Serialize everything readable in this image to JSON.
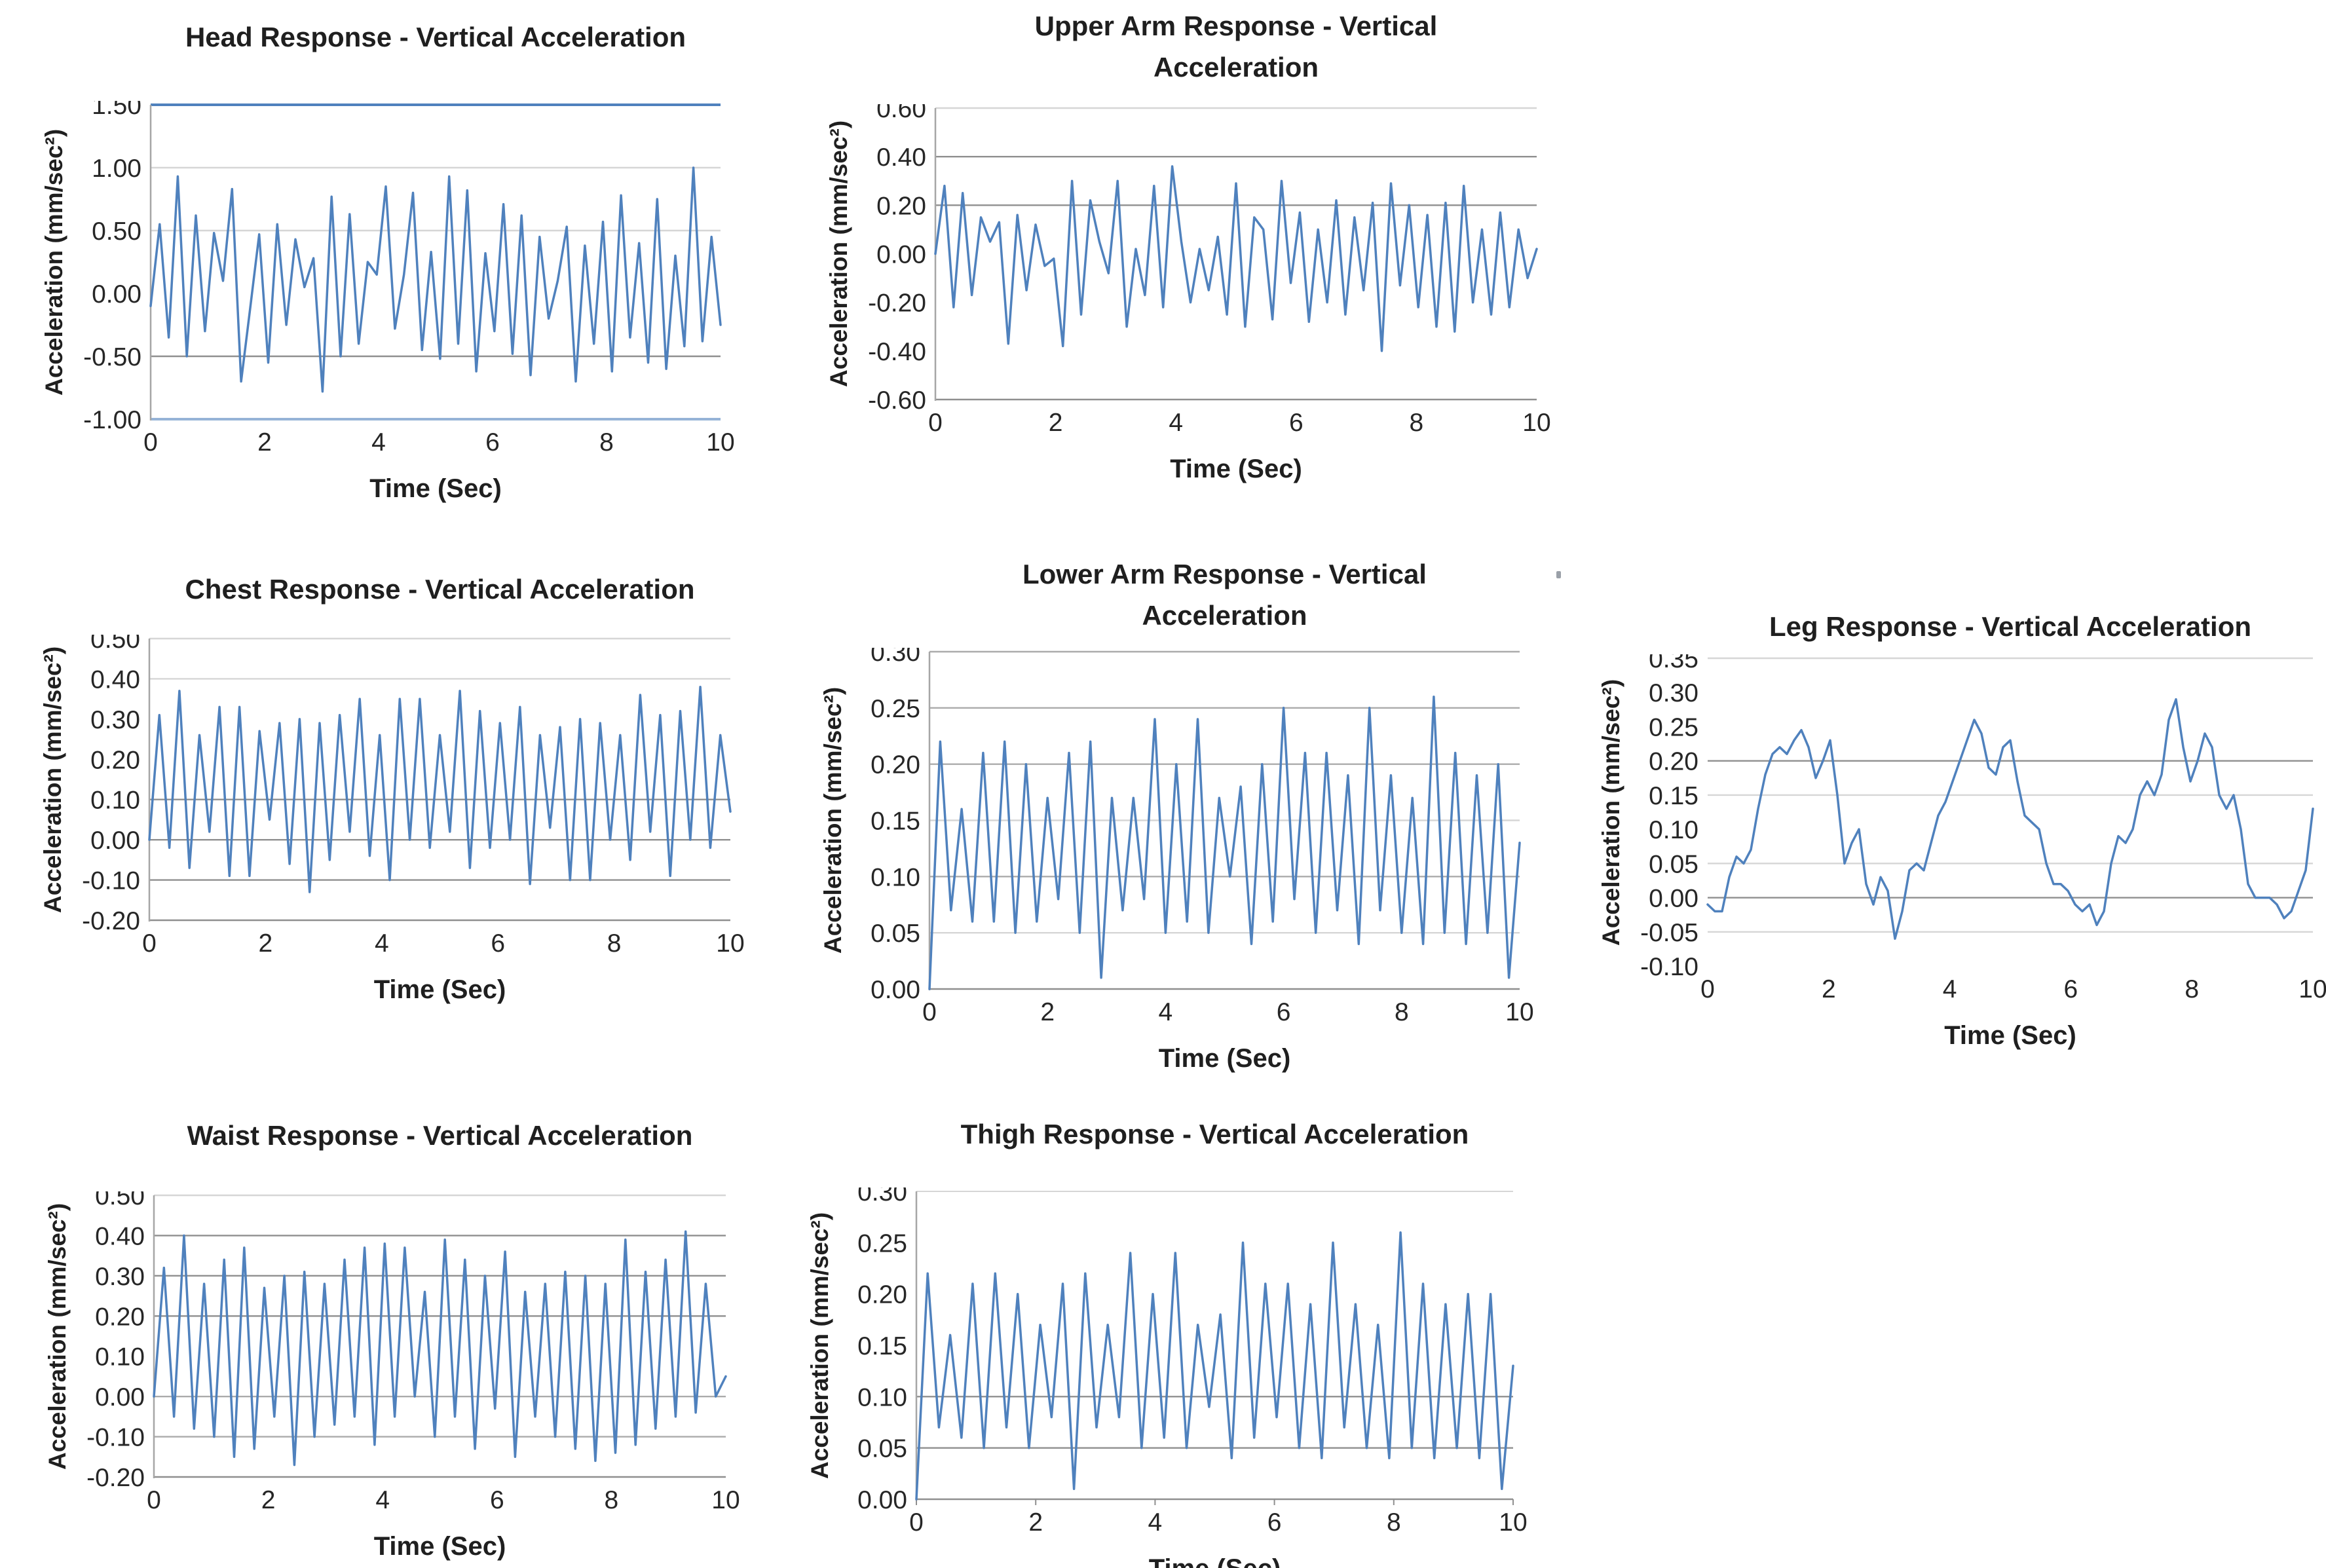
{
  "page": {
    "background": "#ffffff"
  },
  "colors": {
    "series": "#4f81bd",
    "grid_light": "#d6d6d6",
    "grid_mid": "#ababab",
    "grid_dark": "#8f8f8f",
    "axis": "#a6a6a6",
    "border_blue": "#4f81bd",
    "border_lightblue": "#95b3d7"
  },
  "chart_data": [
    {
      "id": "head",
      "type": "line",
      "title": "Head Response - Vertical Acceleration",
      "xlabel": "Time (Sec)",
      "ylabel": "Acceleration (mm/sec²)",
      "xlim": [
        0,
        10
      ],
      "ylim": [
        -1.0,
        1.5
      ],
      "xticks": [
        0,
        2,
        4,
        6,
        8,
        10
      ],
      "yticks": [
        {
          "v": 1.5,
          "label": "1.50"
        },
        {
          "v": 1.0,
          "label": "1.00"
        },
        {
          "v": 0.5,
          "label": "0.50"
        },
        {
          "v": 0.0,
          "label": "0.00"
        },
        {
          "v": -0.5,
          "label": "-0.50"
        },
        {
          "v": -1.0,
          "label": "-1.00"
        }
      ],
      "gridlines": [
        {
          "v": 1.0,
          "shade": "grid_light"
        },
        {
          "v": 0.5,
          "shade": "grid_light"
        },
        {
          "v": -0.5,
          "shade": "grid_dark"
        }
      ],
      "top_border": {
        "v": 1.5,
        "color": "border_blue",
        "w": 4
      },
      "bottom_border": {
        "v": -1.0,
        "color": "border_lightblue",
        "w": 4
      },
      "left_axis": true,
      "x_tick_marks": false,
      "legend": "none",
      "series": [
        {
          "name": "head-vertical-acceleration",
          "y": [
            -0.1,
            0.55,
            -0.35,
            0.93,
            -0.5,
            0.62,
            -0.3,
            0.48,
            0.1,
            0.83,
            -0.7,
            -0.12,
            0.47,
            -0.55,
            0.55,
            -0.25,
            0.43,
            0.05,
            0.28,
            -0.78,
            0.77,
            -0.5,
            0.63,
            -0.4,
            0.25,
            0.15,
            0.85,
            -0.28,
            0.15,
            0.8,
            -0.45,
            0.33,
            -0.52,
            0.93,
            -0.4,
            0.82,
            -0.62,
            0.32,
            -0.3,
            0.71,
            -0.48,
            0.62,
            -0.65,
            0.45,
            -0.2,
            0.1,
            0.53,
            -0.7,
            0.38,
            -0.4,
            0.57,
            -0.62,
            0.78,
            -0.35,
            0.4,
            -0.55,
            0.75,
            -0.6,
            0.3,
            -0.42,
            1.0,
            -0.38,
            0.45,
            -0.25
          ]
        }
      ]
    },
    {
      "id": "upper-arm",
      "type": "line",
      "title": "Upper Arm Response - Vertical\nAcceleration",
      "xlabel": "Time (Sec)",
      "ylabel": "Acceleration (mm/sec²)",
      "xlim": [
        0,
        10
      ],
      "ylim": [
        -0.6,
        0.6
      ],
      "xticks": [
        0,
        2,
        4,
        6,
        8,
        10
      ],
      "yticks": [
        {
          "v": 0.6,
          "label": "0.60"
        },
        {
          "v": 0.4,
          "label": "0.40"
        },
        {
          "v": 0.2,
          "label": "0.20"
        },
        {
          "v": 0.0,
          "label": "0.00"
        },
        {
          "v": -0.2,
          "label": "-0.20"
        },
        {
          "v": -0.4,
          "label": "-0.40"
        },
        {
          "v": -0.6,
          "label": "-0.60"
        }
      ],
      "gridlines": [
        {
          "v": 0.4,
          "shade": "grid_dark"
        },
        {
          "v": 0.2,
          "shade": "grid_dark"
        }
      ],
      "top_border": {
        "v": 0.6,
        "color": "grid_light",
        "w": 2.5
      },
      "bottom_border": {
        "v": -0.6,
        "color": "grid_dark",
        "w": 2.5
      },
      "left_axis": true,
      "x_tick_marks": false,
      "legend": "none",
      "series": [
        {
          "name": "upper-arm-vertical-acceleration",
          "y": [
            0.0,
            0.28,
            -0.22,
            0.25,
            -0.17,
            0.15,
            0.05,
            0.13,
            -0.37,
            0.16,
            -0.15,
            0.12,
            -0.05,
            -0.02,
            -0.38,
            0.3,
            -0.25,
            0.22,
            0.05,
            -0.08,
            0.3,
            -0.3,
            0.02,
            -0.17,
            0.28,
            -0.22,
            0.36,
            0.05,
            -0.2,
            0.02,
            -0.15,
            0.07,
            -0.25,
            0.29,
            -0.3,
            0.15,
            0.1,
            -0.27,
            0.3,
            -0.12,
            0.17,
            -0.28,
            0.1,
            -0.2,
            0.22,
            -0.25,
            0.15,
            -0.15,
            0.21,
            -0.4,
            0.29,
            -0.13,
            0.2,
            -0.22,
            0.16,
            -0.3,
            0.21,
            -0.32,
            0.28,
            -0.2,
            0.1,
            -0.25,
            0.17,
            -0.22,
            0.1,
            -0.1,
            0.02
          ]
        }
      ]
    },
    {
      "id": "chest",
      "type": "line",
      "title": "Chest Response - Vertical Acceleration",
      "xlabel": "Time (Sec)",
      "ylabel": "Acceleration (mm/sec²)",
      "xlim": [
        0,
        10
      ],
      "ylim": [
        -0.2,
        0.5
      ],
      "xticks": [
        0,
        2,
        4,
        6,
        8,
        10
      ],
      "yticks": [
        {
          "v": 0.5,
          "label": "0.50"
        },
        {
          "v": 0.4,
          "label": "0.40"
        },
        {
          "v": 0.3,
          "label": "0.30"
        },
        {
          "v": 0.2,
          "label": "0.20"
        },
        {
          "v": 0.1,
          "label": "0.10"
        },
        {
          "v": 0.0,
          "label": "0.00"
        },
        {
          "v": -0.1,
          "label": "-0.10"
        },
        {
          "v": -0.2,
          "label": "-0.20"
        }
      ],
      "gridlines": [
        {
          "v": 0.4,
          "shade": "grid_light"
        },
        {
          "v": 0.1,
          "shade": "grid_dark"
        },
        {
          "v": 0.0,
          "shade": "grid_dark"
        },
        {
          "v": -0.1,
          "shade": "grid_dark"
        }
      ],
      "top_border": {
        "v": 0.5,
        "color": "grid_light",
        "w": 2.5
      },
      "bottom_border": {
        "v": -0.2,
        "color": "grid_dark",
        "w": 2.5
      },
      "left_axis": true,
      "x_tick_marks": false,
      "legend": "none",
      "series": [
        {
          "name": "chest-vertical-acceleration",
          "y": [
            0.0,
            0.31,
            -0.02,
            0.37,
            -0.07,
            0.26,
            0.02,
            0.33,
            -0.09,
            0.33,
            -0.09,
            0.27,
            0.05,
            0.29,
            -0.06,
            0.3,
            -0.13,
            0.29,
            -0.05,
            0.31,
            0.02,
            0.35,
            -0.04,
            0.26,
            -0.1,
            0.35,
            0.0,
            0.35,
            -0.02,
            0.26,
            0.02,
            0.37,
            -0.07,
            0.32,
            -0.02,
            0.29,
            0.0,
            0.33,
            -0.11,
            0.26,
            0.03,
            0.28,
            -0.1,
            0.3,
            -0.1,
            0.29,
            0.0,
            0.26,
            -0.05,
            0.36,
            0.02,
            0.31,
            -0.09,
            0.32,
            0.0,
            0.38,
            -0.02,
            0.26,
            0.07
          ]
        }
      ]
    },
    {
      "id": "lower-arm",
      "type": "line",
      "title": "Lower Arm Response - Vertical\nAcceleration",
      "xlabel": "Time (Sec)",
      "ylabel": "Acceleration (mm/sec²)",
      "xlim": [
        0,
        10
      ],
      "ylim": [
        0.0,
        0.3
      ],
      "xticks": [
        0,
        2,
        4,
        6,
        8,
        10
      ],
      "yticks": [
        {
          "v": 0.3,
          "label": "0.30"
        },
        {
          "v": 0.25,
          "label": "0.25"
        },
        {
          "v": 0.2,
          "label": "0.20"
        },
        {
          "v": 0.15,
          "label": "0.15"
        },
        {
          "v": 0.1,
          "label": "0.10"
        },
        {
          "v": 0.05,
          "label": "0.05"
        },
        {
          "v": 0.0,
          "label": "0.00"
        }
      ],
      "gridlines": [
        {
          "v": 0.25,
          "shade": "grid_mid"
        },
        {
          "v": 0.2,
          "shade": "grid_mid"
        },
        {
          "v": 0.15,
          "shade": "grid_light"
        },
        {
          "v": 0.1,
          "shade": "grid_mid"
        },
        {
          "v": 0.05,
          "shade": "grid_light"
        }
      ],
      "top_border": {
        "v": 0.3,
        "color": "grid_mid",
        "w": 2.5
      },
      "bottom_border": {
        "v": 0.0,
        "color": "grid_dark",
        "w": 2.5
      },
      "left_axis": true,
      "x_tick_marks": false,
      "legend": "none",
      "series": [
        {
          "name": "lower-arm-vertical-acceleration",
          "y": [
            0.0,
            0.22,
            0.07,
            0.16,
            0.06,
            0.21,
            0.06,
            0.22,
            0.05,
            0.2,
            0.06,
            0.17,
            0.08,
            0.21,
            0.05,
            0.22,
            0.01,
            0.17,
            0.07,
            0.17,
            0.08,
            0.24,
            0.05,
            0.2,
            0.06,
            0.24,
            0.05,
            0.17,
            0.1,
            0.18,
            0.04,
            0.2,
            0.06,
            0.25,
            0.08,
            0.21,
            0.05,
            0.21,
            0.07,
            0.19,
            0.04,
            0.25,
            0.07,
            0.19,
            0.05,
            0.17,
            0.04,
            0.26,
            0.05,
            0.21,
            0.04,
            0.19,
            0.05,
            0.2,
            0.01,
            0.13
          ]
        }
      ]
    },
    {
      "id": "leg",
      "type": "line",
      "title": "Leg Response - Vertical Acceleration",
      "xlabel": "Time (Sec)",
      "ylabel": "Acceleration (mm/sec²)",
      "xlim": [
        0,
        10
      ],
      "ylim": [
        -0.1,
        0.35
      ],
      "xticks": [
        0,
        2,
        4,
        6,
        8,
        10
      ],
      "yticks": [
        {
          "v": 0.35,
          "label": "0.35"
        },
        {
          "v": 0.3,
          "label": "0.30"
        },
        {
          "v": 0.25,
          "label": "0.25"
        },
        {
          "v": 0.2,
          "label": "0.20"
        },
        {
          "v": 0.15,
          "label": "0.15"
        },
        {
          "v": 0.1,
          "label": "0.10"
        },
        {
          "v": 0.05,
          "label": "0.05"
        },
        {
          "v": 0.0,
          "label": "0.00"
        },
        {
          "v": -0.05,
          "label": "-0.05"
        },
        {
          "v": -0.1,
          "label": "-0.10"
        }
      ],
      "gridlines": [
        {
          "v": 0.2,
          "shade": "grid_dark"
        },
        {
          "v": 0.15,
          "shade": "grid_light"
        },
        {
          "v": 0.05,
          "shade": "grid_light"
        },
        {
          "v": 0.0,
          "shade": "grid_dark"
        },
        {
          "v": -0.05,
          "shade": "grid_light"
        }
      ],
      "top_border": {
        "v": 0.35,
        "color": "grid_light",
        "w": 2.5
      },
      "bottom_border": null,
      "left_axis": false,
      "x_tick_marks": false,
      "legend": "none",
      "series": [
        {
          "name": "leg-vertical-acceleration",
          "y": [
            -0.01,
            -0.02,
            -0.02,
            0.03,
            0.06,
            0.05,
            0.07,
            0.13,
            0.18,
            0.21,
            0.22,
            0.21,
            0.23,
            0.245,
            0.22,
            0.175,
            0.2,
            0.23,
            0.15,
            0.05,
            0.08,
            0.1,
            0.02,
            -0.01,
            0.03,
            0.01,
            -0.06,
            -0.02,
            0.04,
            0.05,
            0.04,
            0.08,
            0.12,
            0.14,
            0.17,
            0.2,
            0.23,
            0.26,
            0.24,
            0.19,
            0.18,
            0.22,
            0.23,
            0.17,
            0.12,
            0.11,
            0.1,
            0.05,
            0.02,
            0.02,
            0.01,
            -0.01,
            -0.02,
            -0.01,
            -0.04,
            -0.02,
            0.05,
            0.09,
            0.08,
            0.1,
            0.15,
            0.17,
            0.15,
            0.18,
            0.26,
            0.29,
            0.22,
            0.17,
            0.2,
            0.24,
            0.22,
            0.15,
            0.13,
            0.15,
            0.1,
            0.02,
            0.0,
            0.0,
            0.0,
            -0.01,
            -0.03,
            -0.02,
            0.01,
            0.04,
            0.13
          ]
        }
      ]
    },
    {
      "id": "waist",
      "type": "line",
      "title": "Waist Response - Vertical Acceleration",
      "xlabel": "Time (Sec)",
      "ylabel": "Acceleration (mm/sec²)",
      "xlim": [
        0,
        10
      ],
      "ylim": [
        -0.2,
        0.5
      ],
      "xticks": [
        0,
        2,
        4,
        6,
        8,
        10
      ],
      "yticks": [
        {
          "v": 0.5,
          "label": "0.50"
        },
        {
          "v": 0.4,
          "label": "0.40"
        },
        {
          "v": 0.3,
          "label": "0.30"
        },
        {
          "v": 0.2,
          "label": "0.20"
        },
        {
          "v": 0.1,
          "label": "0.10"
        },
        {
          "v": 0.0,
          "label": "0.00"
        },
        {
          "v": -0.1,
          "label": "-0.10"
        },
        {
          "v": -0.2,
          "label": "-0.20"
        }
      ],
      "gridlines": [
        {
          "v": 0.4,
          "shade": "grid_dark"
        },
        {
          "v": 0.3,
          "shade": "grid_dark"
        },
        {
          "v": 0.2,
          "shade": "grid_dark"
        },
        {
          "v": 0.0,
          "shade": "grid_mid"
        },
        {
          "v": -0.1,
          "shade": "grid_mid"
        }
      ],
      "top_border": {
        "v": 0.5,
        "color": "grid_light",
        "w": 2.5
      },
      "bottom_border": {
        "v": -0.2,
        "color": "grid_dark",
        "w": 2.5
      },
      "left_axis": true,
      "x_tick_marks": false,
      "legend": "none",
      "series": [
        {
          "name": "waist-vertical-acceleration",
          "y": [
            0.0,
            0.32,
            -0.05,
            0.4,
            -0.08,
            0.28,
            -0.1,
            0.34,
            -0.15,
            0.37,
            -0.13,
            0.27,
            -0.05,
            0.3,
            -0.17,
            0.31,
            -0.1,
            0.28,
            -0.07,
            0.34,
            -0.05,
            0.37,
            -0.12,
            0.38,
            -0.05,
            0.37,
            0.0,
            0.26,
            -0.1,
            0.39,
            -0.05,
            0.34,
            -0.13,
            0.3,
            -0.03,
            0.36,
            -0.15,
            0.26,
            -0.05,
            0.28,
            -0.1,
            0.31,
            -0.13,
            0.3,
            -0.16,
            0.28,
            -0.14,
            0.39,
            -0.12,
            0.31,
            -0.08,
            0.34,
            -0.05,
            0.41,
            -0.04,
            0.28,
            0.0,
            0.05
          ]
        }
      ]
    },
    {
      "id": "thigh",
      "type": "line",
      "title": "Thigh Response - Vertical Acceleration",
      "xlabel": "Time (Sec)",
      "ylabel": "Acceleration (mm/sec²)",
      "xlim": [
        0,
        10
      ],
      "ylim": [
        0.0,
        0.3
      ],
      "xticks": [
        0,
        2,
        4,
        6,
        8,
        10
      ],
      "yticks": [
        {
          "v": 0.3,
          "label": "0.30"
        },
        {
          "v": 0.25,
          "label": "0.25"
        },
        {
          "v": 0.2,
          "label": "0.20"
        },
        {
          "v": 0.15,
          "label": "0.15"
        },
        {
          "v": 0.1,
          "label": "0.10"
        },
        {
          "v": 0.05,
          "label": "0.05"
        },
        {
          "v": 0.0,
          "label": "0.00"
        }
      ],
      "gridlines": [
        {
          "v": 0.1,
          "shade": "grid_dark"
        },
        {
          "v": 0.05,
          "shade": "grid_dark"
        }
      ],
      "top_border": {
        "v": 0.3,
        "color": "grid_light",
        "w": 2
      },
      "bottom_border": {
        "v": 0.0,
        "color": "grid_dark",
        "w": 2.5
      },
      "left_axis": true,
      "x_tick_marks": true,
      "legend": "none",
      "series": [
        {
          "name": "thigh-vertical-acceleration",
          "y": [
            0.0,
            0.22,
            0.07,
            0.16,
            0.06,
            0.21,
            0.05,
            0.22,
            0.07,
            0.2,
            0.05,
            0.17,
            0.08,
            0.21,
            0.01,
            0.22,
            0.07,
            0.17,
            0.08,
            0.24,
            0.05,
            0.2,
            0.06,
            0.24,
            0.05,
            0.17,
            0.09,
            0.18,
            0.04,
            0.25,
            0.06,
            0.21,
            0.08,
            0.21,
            0.05,
            0.19,
            0.04,
            0.25,
            0.07,
            0.19,
            0.05,
            0.17,
            0.04,
            0.26,
            0.05,
            0.21,
            0.04,
            0.19,
            0.05,
            0.2,
            0.04,
            0.2,
            0.01,
            0.13
          ]
        }
      ]
    }
  ]
}
